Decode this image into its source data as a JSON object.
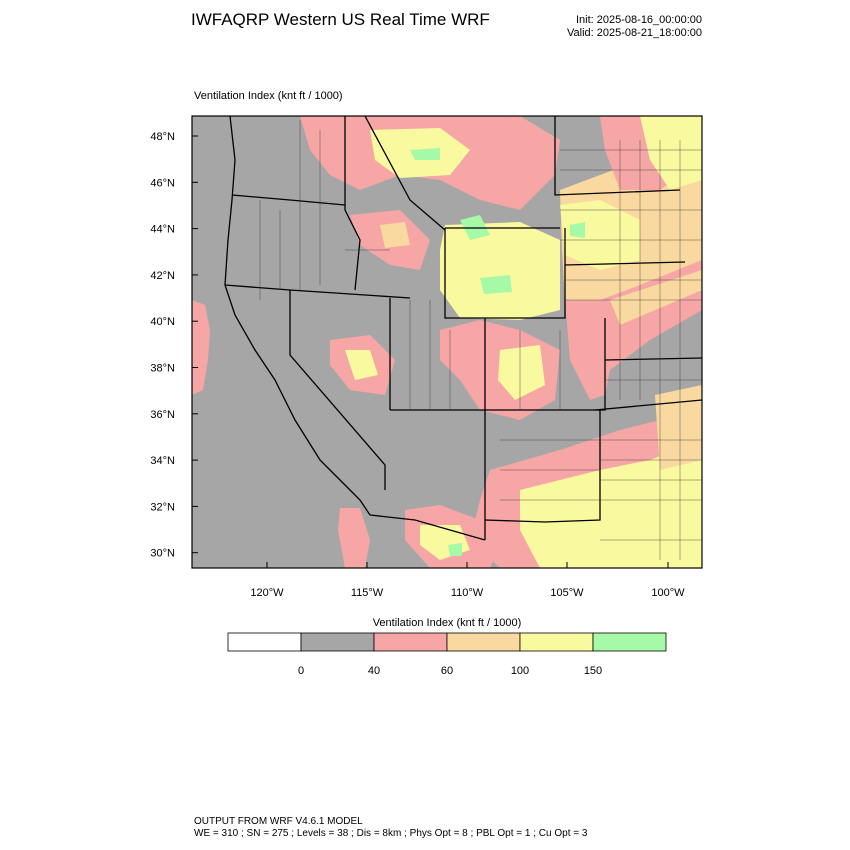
{
  "header": {
    "title": "IWFAQRP Western US Real Time WRF",
    "init": "Init: 2025-08-16_00:00:00",
    "valid": "Valid: 2025-08-21_18:00:00"
  },
  "map": {
    "subtitle": "Ventilation Index   (knt ft / 1000)",
    "lat_labels": [
      "48°N",
      "46°N",
      "44°N",
      "42°N",
      "40°N",
      "38°N",
      "36°N",
      "34°N",
      "32°N",
      "30°N"
    ],
    "lon_labels": [
      "120°W",
      "115°W",
      "110°W",
      "105°W",
      "100°W"
    ],
    "colors": {
      "gray": "#a6a6a6",
      "pink": "#f7a6a6",
      "tan": "#f9d9a0",
      "yellow": "#f9f9a0",
      "green": "#a6f9a6",
      "border": "#000000",
      "county": "#333333"
    }
  },
  "colorbar": {
    "title": "Ventilation Index   (knt ft / 1000)",
    "ticks": [
      "0",
      "40",
      "60",
      "100",
      "150"
    ],
    "bins": [
      {
        "color": "#ffffff"
      },
      {
        "color": "#a6a6a6"
      },
      {
        "color": "#f7a6a6"
      },
      {
        "color": "#f9d9a0"
      },
      {
        "color": "#f9f9a0"
      },
      {
        "color": "#a6f9a6"
      }
    ]
  },
  "footer": {
    "line1": "OUTPUT FROM WRF V4.6.1 MODEL",
    "line2": "WE = 310 ; SN = 275 ; Levels = 38 ; Dis = 8km ; Phys Opt = 8 ; PBL Opt = 1 ; Cu Opt = 3"
  }
}
